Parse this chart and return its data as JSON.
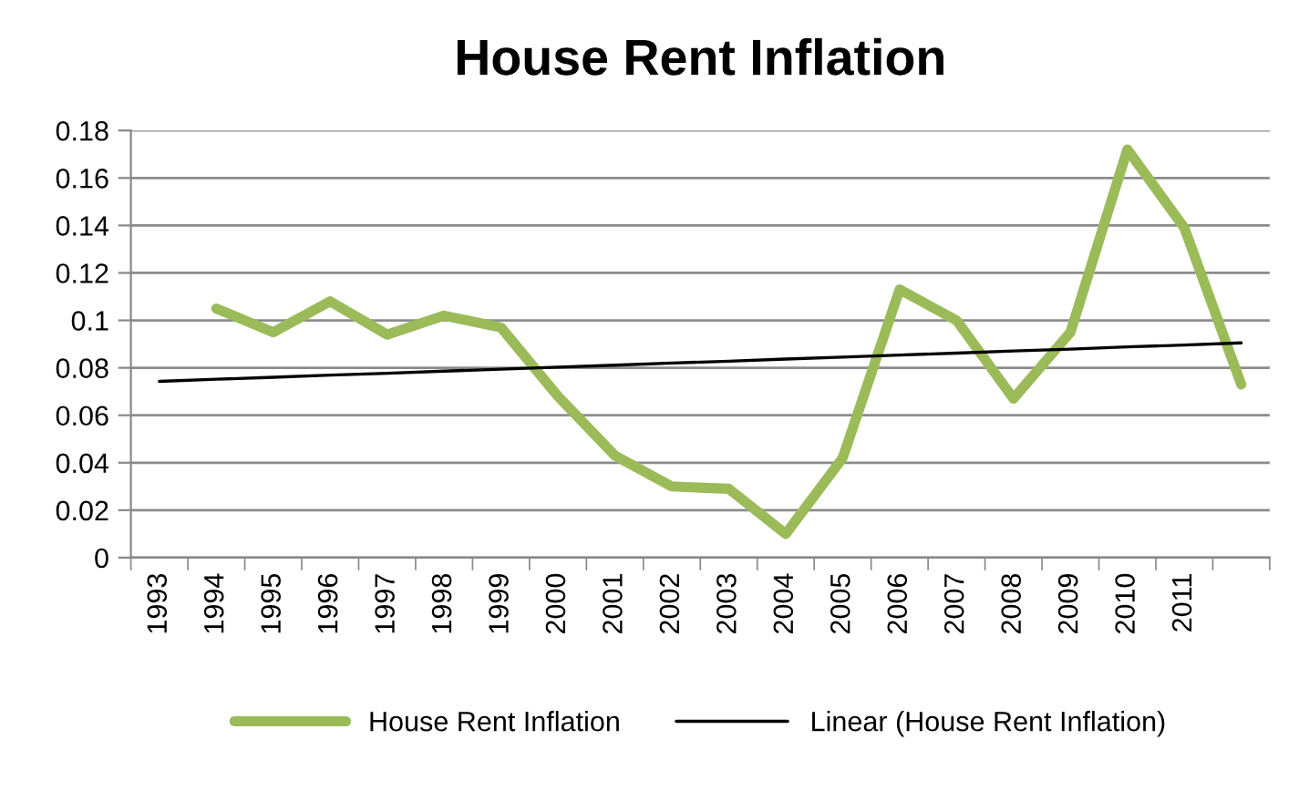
{
  "chart_data": {
    "type": "line",
    "title": "House Rent Inflation",
    "categories": [
      "1993",
      "1994",
      "1995",
      "1996",
      "1997",
      "1998",
      "1999",
      "2000",
      "2001",
      "2002",
      "2003",
      "2004",
      "2005",
      "2006",
      "2007",
      "2008",
      "2009",
      "2010",
      "2011",
      null
    ],
    "series": [
      {
        "name": "House Rent Inflation",
        "color": "#9bbb59",
        "values": [
          null,
          0.105,
          0.095,
          0.108,
          0.094,
          0.102,
          0.097,
          0.068,
          0.043,
          0.03,
          0.029,
          0.01,
          0.042,
          0.113,
          0.1,
          0.067,
          0.095,
          0.172,
          0.139,
          0.073
        ]
      },
      {
        "name": "Linear (House Rent Inflation)",
        "color": "#000000",
        "values": [
          0.0743,
          0.0752,
          0.076,
          0.0769,
          0.0777,
          0.0786,
          0.0794,
          0.0803,
          0.0811,
          0.082,
          0.0828,
          0.0837,
          0.0845,
          0.0854,
          0.0862,
          0.0871,
          0.0879,
          0.0888,
          0.0896,
          0.0905
        ]
      }
    ],
    "ylim": [
      0,
      0.18
    ],
    "yticks": [
      0,
      0.02,
      0.04,
      0.06,
      0.08,
      0.1,
      0.12,
      0.14,
      0.16,
      0.18
    ],
    "grid": "y",
    "legend": "bottom",
    "marker": "none",
    "line_style": "solid"
  }
}
